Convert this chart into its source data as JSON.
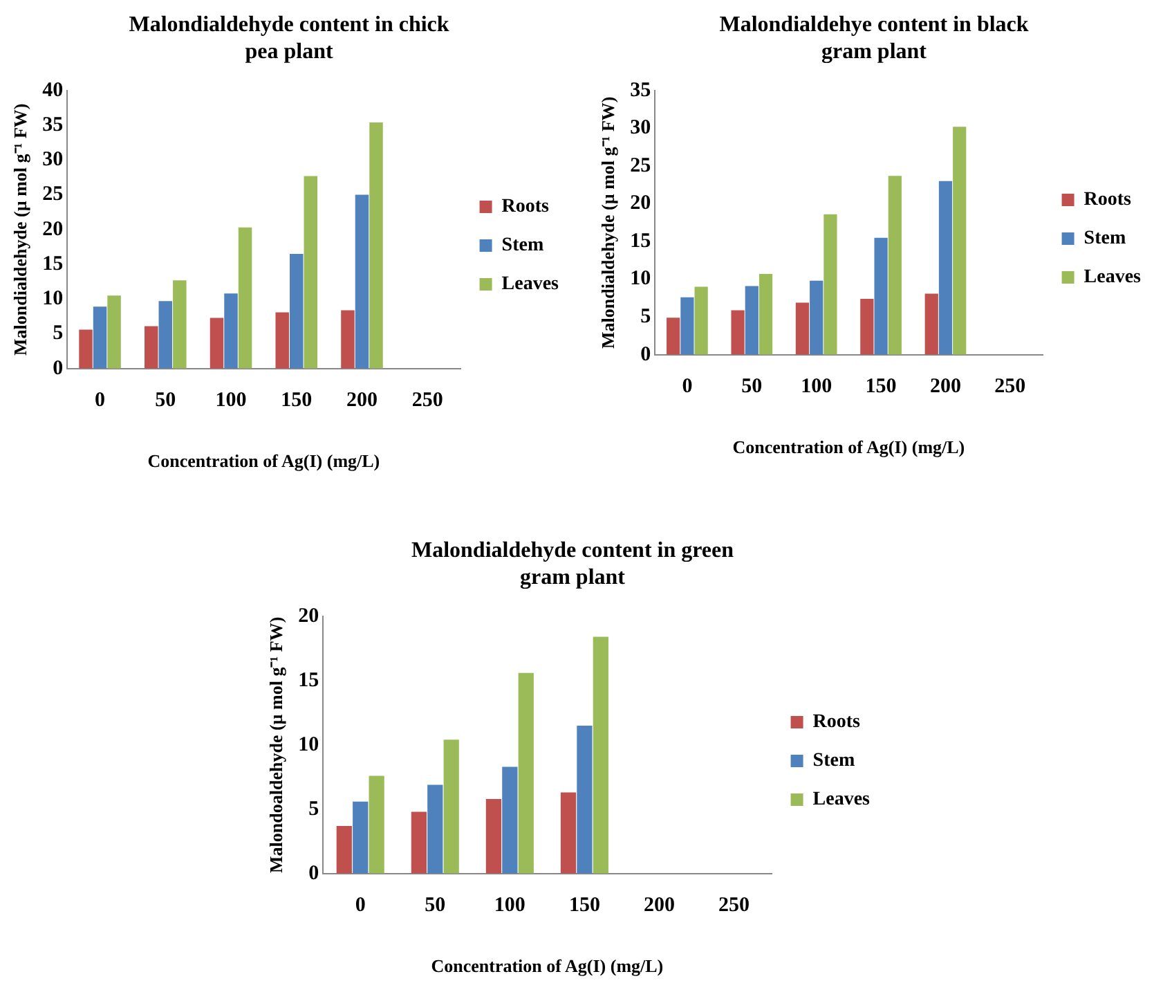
{
  "chart_data": [
    {
      "type": "bar",
      "title": "Malondialdehyde content in chick pea plant",
      "xlabel": "Concentration of Ag(I) (mg/L)",
      "ylabel": "Malondialdehyde (µ mol g⁻¹ FW)",
      "categories": [
        "0",
        "50",
        "100",
        "150",
        "200",
        "250"
      ],
      "ylim": [
        0,
        40
      ],
      "yticks": [
        0,
        5,
        10,
        15,
        20,
        25,
        30,
        35,
        40
      ],
      "grid": false,
      "legend": "right",
      "series": [
        {
          "name": "Roots",
          "color": "#c0504d",
          "values": [
            5.6,
            6.1,
            7.3,
            8.1,
            8.4,
            null
          ]
        },
        {
          "name": "Stem",
          "color": "#4f81bd",
          "values": [
            8.9,
            9.7,
            10.8,
            16.5,
            25.0,
            null
          ]
        },
        {
          "name": "Leaves",
          "color": "#9bbb59",
          "values": [
            10.5,
            12.7,
            20.3,
            27.7,
            35.4,
            null
          ]
        }
      ]
    },
    {
      "type": "bar",
      "title": "Malondialdehye content in black gram plant",
      "xlabel": "Concentration of Ag(I) (mg/L)",
      "ylabel": "Malondialdehyde (µ mol g⁻¹ FW)",
      "categories": [
        "0",
        "50",
        "100",
        "150",
        "200",
        "250"
      ],
      "ylim": [
        0,
        35
      ],
      "yticks": [
        0,
        5,
        10,
        15,
        20,
        25,
        30,
        35
      ],
      "grid": false,
      "legend": "right",
      "series": [
        {
          "name": "Roots",
          "color": "#c0504d",
          "values": [
            4.9,
            5.9,
            6.9,
            7.4,
            8.1,
            null
          ]
        },
        {
          "name": "Stem",
          "color": "#4f81bd",
          "values": [
            7.6,
            9.1,
            9.8,
            15.5,
            23.0,
            null
          ]
        },
        {
          "name": "Leaves",
          "color": "#9bbb59",
          "values": [
            9.0,
            10.7,
            18.6,
            23.7,
            30.2,
            null
          ]
        }
      ]
    },
    {
      "type": "bar",
      "title": "Malondialdehyde content in green gram plant",
      "xlabel": "Concentration of Ag(I) (mg/L)",
      "ylabel": "Malondoaldehyde (µ mol g⁻¹ FW)",
      "categories": [
        "0",
        "50",
        "100",
        "150",
        "200",
        "250"
      ],
      "ylim": [
        0,
        20
      ],
      "yticks": [
        0,
        5,
        10,
        15,
        20
      ],
      "grid": false,
      "legend": "right",
      "series": [
        {
          "name": "Roots",
          "color": "#c0504d",
          "values": [
            3.7,
            4.8,
            5.8,
            6.3,
            null,
            null
          ]
        },
        {
          "name": "Stem",
          "color": "#4f81bd",
          "values": [
            5.6,
            6.9,
            8.3,
            11.5,
            null,
            null
          ]
        },
        {
          "name": "Leaves",
          "color": "#9bbb59",
          "values": [
            7.6,
            10.4,
            15.6,
            18.4,
            null,
            null
          ]
        }
      ]
    }
  ]
}
